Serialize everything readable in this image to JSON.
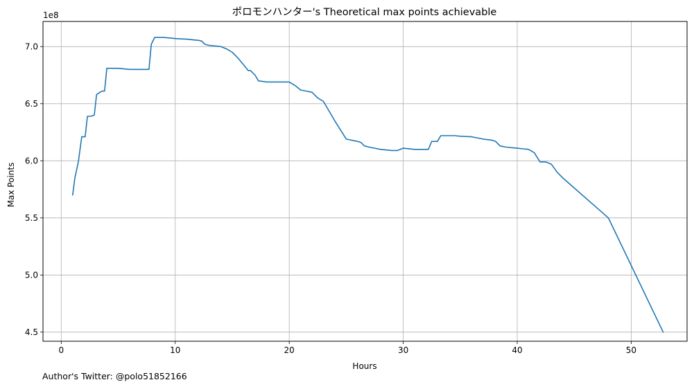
{
  "chart_data": {
    "type": "line",
    "title": "ポロモンハンター's Theoretical max points achievable",
    "xlabel": "Hours",
    "ylabel": "Max Points",
    "y_offset_text": "1e8",
    "xlim": [
      -1.6,
      54.9
    ],
    "ylim": [
      4.42,
      7.22
    ],
    "x_ticks": [
      0,
      10,
      20,
      30,
      40,
      50
    ],
    "x_tick_labels": [
      "0",
      "10",
      "20",
      "30",
      "40",
      "50"
    ],
    "y_ticks": [
      4.5,
      5.0,
      5.5,
      6.0,
      6.5,
      7.0
    ],
    "y_tick_labels": [
      "4.5",
      "5.0",
      "5.5",
      "6.0",
      "6.5",
      "7.0"
    ],
    "grid": true,
    "legend": false,
    "series": [
      {
        "color": "#1f77b4",
        "x": [
          1.0,
          1.2,
          1.5,
          1.8,
          1.9,
          2.1,
          2.3,
          2.6,
          2.9,
          3.1,
          3.4,
          3.6,
          3.8,
          4.0,
          4.3,
          5.0,
          6.0,
          7.0,
          7.5,
          7.7,
          7.9,
          8.2,
          9.0,
          10.0,
          11.0,
          11.5,
          12.0,
          12.3,
          12.6,
          13.0,
          14.0,
          14.5,
          15.0,
          15.5,
          16.0,
          16.4,
          16.6,
          17.0,
          17.3,
          18.0,
          19.0,
          20.0,
          20.5,
          21.0,
          21.5,
          22.0,
          22.5,
          23.0,
          24.0,
          25.0,
          26.0,
          26.3,
          26.6,
          27.0,
          27.5,
          28.0,
          29.0,
          29.5,
          30.0,
          31.0,
          31.5,
          32.0,
          32.2,
          32.5,
          33.0,
          33.3,
          34.0,
          34.5,
          35.0,
          36.0,
          37.0,
          37.8,
          38.1,
          38.5,
          39.0,
          40.0,
          40.5,
          41.0,
          41.5,
          42.0,
          42.5,
          43.0,
          43.5,
          44.0,
          48.0,
          52.8
        ],
        "y": [
          5.7,
          5.85,
          5.99,
          6.21,
          6.21,
          6.21,
          6.39,
          6.39,
          6.4,
          6.58,
          6.6,
          6.61,
          6.61,
          6.81,
          6.81,
          6.81,
          6.8,
          6.8,
          6.8,
          6.8,
          7.02,
          7.08,
          7.08,
          7.07,
          7.065,
          7.06,
          7.055,
          7.05,
          7.02,
          7.01,
          7.0,
          6.98,
          6.95,
          6.9,
          6.84,
          6.79,
          6.79,
          6.75,
          6.7,
          6.69,
          6.69,
          6.69,
          6.66,
          6.62,
          6.61,
          6.6,
          6.55,
          6.52,
          6.35,
          6.19,
          6.17,
          6.16,
          6.13,
          6.12,
          6.11,
          6.1,
          6.09,
          6.09,
          6.11,
          6.1,
          6.1,
          6.1,
          6.1,
          6.17,
          6.17,
          6.22,
          6.22,
          6.22,
          6.215,
          6.21,
          6.19,
          6.18,
          6.17,
          6.13,
          6.12,
          6.11,
          6.105,
          6.1,
          6.07,
          5.99,
          5.99,
          5.97,
          5.9,
          5.85,
          5.5,
          4.5
        ]
      }
    ]
  },
  "footer": {
    "author_note": "Author's Twitter: @polo51852166"
  }
}
